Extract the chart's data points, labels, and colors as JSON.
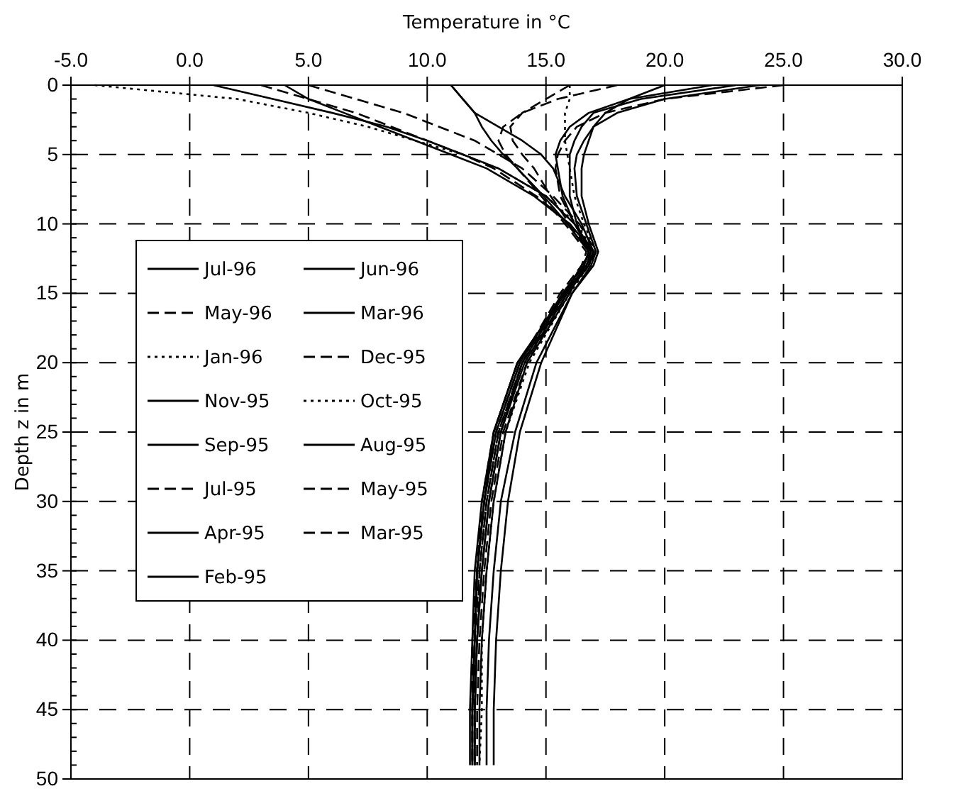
{
  "chart_data": {
    "type": "line",
    "xlabel": "Temperature in °C",
    "ylabel": "Depth z in m",
    "xlim": [
      -5,
      30
    ],
    "xticks": [
      {
        "value": -5,
        "label": "-5.0"
      },
      {
        "value": 0,
        "label": "0.0"
      },
      {
        "value": 5,
        "label": "5.0"
      },
      {
        "value": 10,
        "label": "10.0"
      },
      {
        "value": 15,
        "label": "15.0"
      },
      {
        "value": 20,
        "label": "20.0"
      },
      {
        "value": 25,
        "label": "25.0"
      },
      {
        "value": 30,
        "label": "30.0"
      }
    ],
    "ylim": [
      50,
      0
    ],
    "yticks": [
      0,
      5,
      10,
      15,
      20,
      25,
      30,
      35,
      40,
      45,
      50
    ],
    "grid": true,
    "legend": "left",
    "series": [
      {
        "name": "Jul-96",
        "color": "#000000",
        "line_style": "solid",
        "values": [
          0,
          1,
          2,
          3,
          4,
          5,
          6,
          8,
          10,
          12,
          13,
          15,
          20,
          25,
          30,
          35,
          40,
          45,
          49
        ],
        "x": [
          23,
          19,
          17,
          16.5,
          16.2,
          16,
          16,
          16,
          16.3,
          16.8,
          16.6,
          16,
          14.2,
          13.3,
          12.8,
          12.5,
          12.3,
          12.2,
          12.2
        ]
      },
      {
        "name": "Jun-96",
        "color": "#000000",
        "line_style": "solid",
        "values": [
          0,
          1,
          2,
          3,
          4,
          5,
          6,
          8,
          10,
          12,
          13,
          15,
          20,
          25,
          30,
          35,
          40,
          45,
          49
        ],
        "x": [
          22,
          18.5,
          16.8,
          16,
          15.6,
          15.4,
          15.5,
          15.7,
          16.2,
          16.9,
          16.5,
          15.8,
          14,
          13.1,
          12.6,
          12.3,
          12.1,
          12,
          12
        ]
      },
      {
        "name": "May-96",
        "color": "#000000",
        "line_style": "dashed",
        "values": [
          0,
          1,
          2,
          3,
          4,
          5,
          6,
          8,
          10,
          12,
          13,
          15,
          20,
          25,
          30,
          35,
          40,
          45,
          49
        ],
        "x": [
          16,
          15,
          14,
          13.5,
          13.6,
          14,
          14.5,
          15.2,
          16,
          16.8,
          16.6,
          15.7,
          14,
          13,
          12.5,
          12.2,
          12.1,
          12,
          12
        ]
      },
      {
        "name": "Mar-96",
        "color": "#000000",
        "line_style": "solid",
        "values": [
          0,
          1,
          2,
          3,
          4,
          5,
          6,
          8,
          10,
          12,
          13,
          15,
          20,
          25,
          30,
          35,
          40,
          45,
          49
        ],
        "x": [
          4,
          5,
          6.5,
          8,
          9.5,
          11,
          12.5,
          14.5,
          16,
          17,
          16.7,
          15.8,
          13.8,
          12.8,
          12.4,
          12.1,
          12,
          11.9,
          11.9
        ]
      },
      {
        "name": "Jan-96",
        "color": "#000000",
        "line_style": "dotted",
        "values": [
          0,
          1,
          2,
          3,
          4,
          5,
          6,
          8,
          10,
          12,
          13,
          15,
          20,
          25,
          30,
          35,
          40,
          45,
          49
        ],
        "x": [
          -4,
          2,
          5,
          7.5,
          9.5,
          11.5,
          13,
          15,
          16.3,
          17,
          16.8,
          15.8,
          13.9,
          12.9,
          12.4,
          12.1,
          12,
          11.9,
          11.9
        ]
      },
      {
        "name": "Dec-95",
        "color": "#000000",
        "line_style": "dashed",
        "values": [
          0,
          1,
          2,
          3,
          4,
          5,
          6,
          8,
          10,
          12,
          13,
          15,
          20,
          25,
          30,
          35,
          40,
          45,
          49
        ],
        "x": [
          5,
          7,
          9,
          10.5,
          12,
          13,
          14,
          15.3,
          16.4,
          17.1,
          16.8,
          15.9,
          14,
          13,
          12.5,
          12.2,
          12,
          12,
          12
        ]
      },
      {
        "name": "Nov-95",
        "color": "#000000",
        "line_style": "solid",
        "values": [
          0,
          1,
          2,
          3,
          4,
          5,
          6,
          8,
          10,
          12,
          13,
          15,
          20,
          25,
          30,
          35,
          40,
          45,
          49
        ],
        "x": [
          11,
          11.5,
          12,
          13,
          14,
          14.8,
          15.3,
          15.8,
          16.5,
          17,
          16.8,
          15.9,
          14.1,
          13.1,
          12.6,
          12.3,
          12.1,
          12,
          12
        ]
      },
      {
        "name": "Oct-95",
        "color": "#000000",
        "line_style": "dotted",
        "values": [
          0,
          1,
          2,
          3,
          4,
          5,
          6,
          8,
          10,
          12,
          13,
          15,
          20,
          25,
          30,
          35,
          40,
          45,
          49
        ],
        "x": [
          16,
          16,
          15.8,
          15.8,
          15.8,
          15.9,
          16,
          16.2,
          16.6,
          17.1,
          16.8,
          16,
          14.3,
          13.3,
          12.8,
          12.5,
          12.3,
          12.3,
          12.2
        ]
      },
      {
        "name": "Sep-95",
        "color": "#000000",
        "line_style": "solid",
        "values": [
          0,
          1,
          2,
          3,
          4,
          5,
          6,
          8,
          10,
          12,
          13,
          15,
          20,
          25,
          30,
          35,
          40,
          45,
          49
        ],
        "x": [
          20,
          18.5,
          17.5,
          17,
          16.8,
          16.6,
          16.5,
          16.5,
          16.8,
          17.2,
          17,
          16.1,
          14.6,
          13.7,
          13.1,
          12.8,
          12.6,
          12.5,
          12.5
        ]
      },
      {
        "name": "Aug-95",
        "color": "#000000",
        "line_style": "solid",
        "values": [
          0,
          1,
          2,
          3,
          4,
          5,
          6,
          8,
          10,
          12,
          13,
          15,
          20,
          25,
          30,
          35,
          40,
          45,
          49
        ],
        "x": [
          24,
          20,
          18,
          17,
          16.6,
          16.3,
          16.2,
          16.3,
          16.7,
          17.1,
          16.9,
          16.1,
          14.8,
          13.9,
          13.4,
          13.1,
          12.9,
          12.8,
          12.8
        ]
      },
      {
        "name": "Jul-95",
        "color": "#000000",
        "line_style": "dashed",
        "values": [
          0,
          1,
          2,
          3,
          4,
          5,
          6,
          8,
          10,
          12,
          13,
          15,
          20,
          25,
          30,
          35,
          40,
          45,
          49
        ],
        "x": [
          25,
          20,
          17.5,
          16.3,
          15.8,
          15.5,
          15.4,
          15.6,
          16.2,
          16.9,
          16.7,
          15.9,
          14.2,
          13.2,
          12.7,
          12.4,
          12.2,
          12.1,
          12.1
        ]
      },
      {
        "name": "May-95",
        "color": "#000000",
        "line_style": "dashed",
        "values": [
          0,
          1,
          2,
          3,
          4,
          5,
          6,
          8,
          10,
          12,
          13,
          15,
          20,
          25,
          30,
          35,
          40,
          45,
          49
        ],
        "x": [
          18,
          15.5,
          14,
          13.2,
          13,
          13.3,
          13.8,
          14.8,
          15.8,
          16.7,
          16.5,
          15.6,
          13.9,
          12.9,
          12.4,
          12.1,
          12,
          11.9,
          11.9
        ]
      },
      {
        "name": "Apr-95",
        "color": "#000000",
        "line_style": "solid",
        "values": [
          0,
          1,
          2,
          3,
          4,
          5,
          6,
          8,
          10,
          12,
          13,
          15,
          20,
          25,
          30,
          35,
          40,
          45,
          49
        ],
        "x": [
          11,
          11.5,
          12,
          12.3,
          12.7,
          13.2,
          13.8,
          14.9,
          15.9,
          16.8,
          16.6,
          15.7,
          13.9,
          12.9,
          12.4,
          12.1,
          12,
          11.9,
          11.9
        ]
      },
      {
        "name": "Mar-95",
        "color": "#000000",
        "line_style": "dashed",
        "values": [
          0,
          1,
          2,
          3,
          4,
          5,
          6,
          8,
          10,
          12,
          13,
          15,
          20,
          25,
          30,
          35,
          40,
          45,
          49
        ],
        "x": [
          3,
          5,
          7,
          8.5,
          10,
          11.5,
          12.8,
          14.6,
          16,
          16.9,
          16.7,
          15.8,
          13.8,
          12.8,
          12.3,
          12.1,
          11.9,
          11.9,
          11.9
        ]
      },
      {
        "name": "Feb-95",
        "color": "#000000",
        "line_style": "solid",
        "values": [
          0,
          1,
          2,
          3,
          4,
          5,
          6,
          8,
          10,
          12,
          13,
          15,
          20,
          25,
          30,
          35,
          40,
          45,
          49
        ],
        "x": [
          1,
          3.5,
          6,
          8.3,
          10,
          11.5,
          13,
          15,
          16.2,
          17,
          16.8,
          15.8,
          13.8,
          12.8,
          12.3,
          12,
          11.9,
          11.8,
          11.8
        ]
      }
    ]
  }
}
